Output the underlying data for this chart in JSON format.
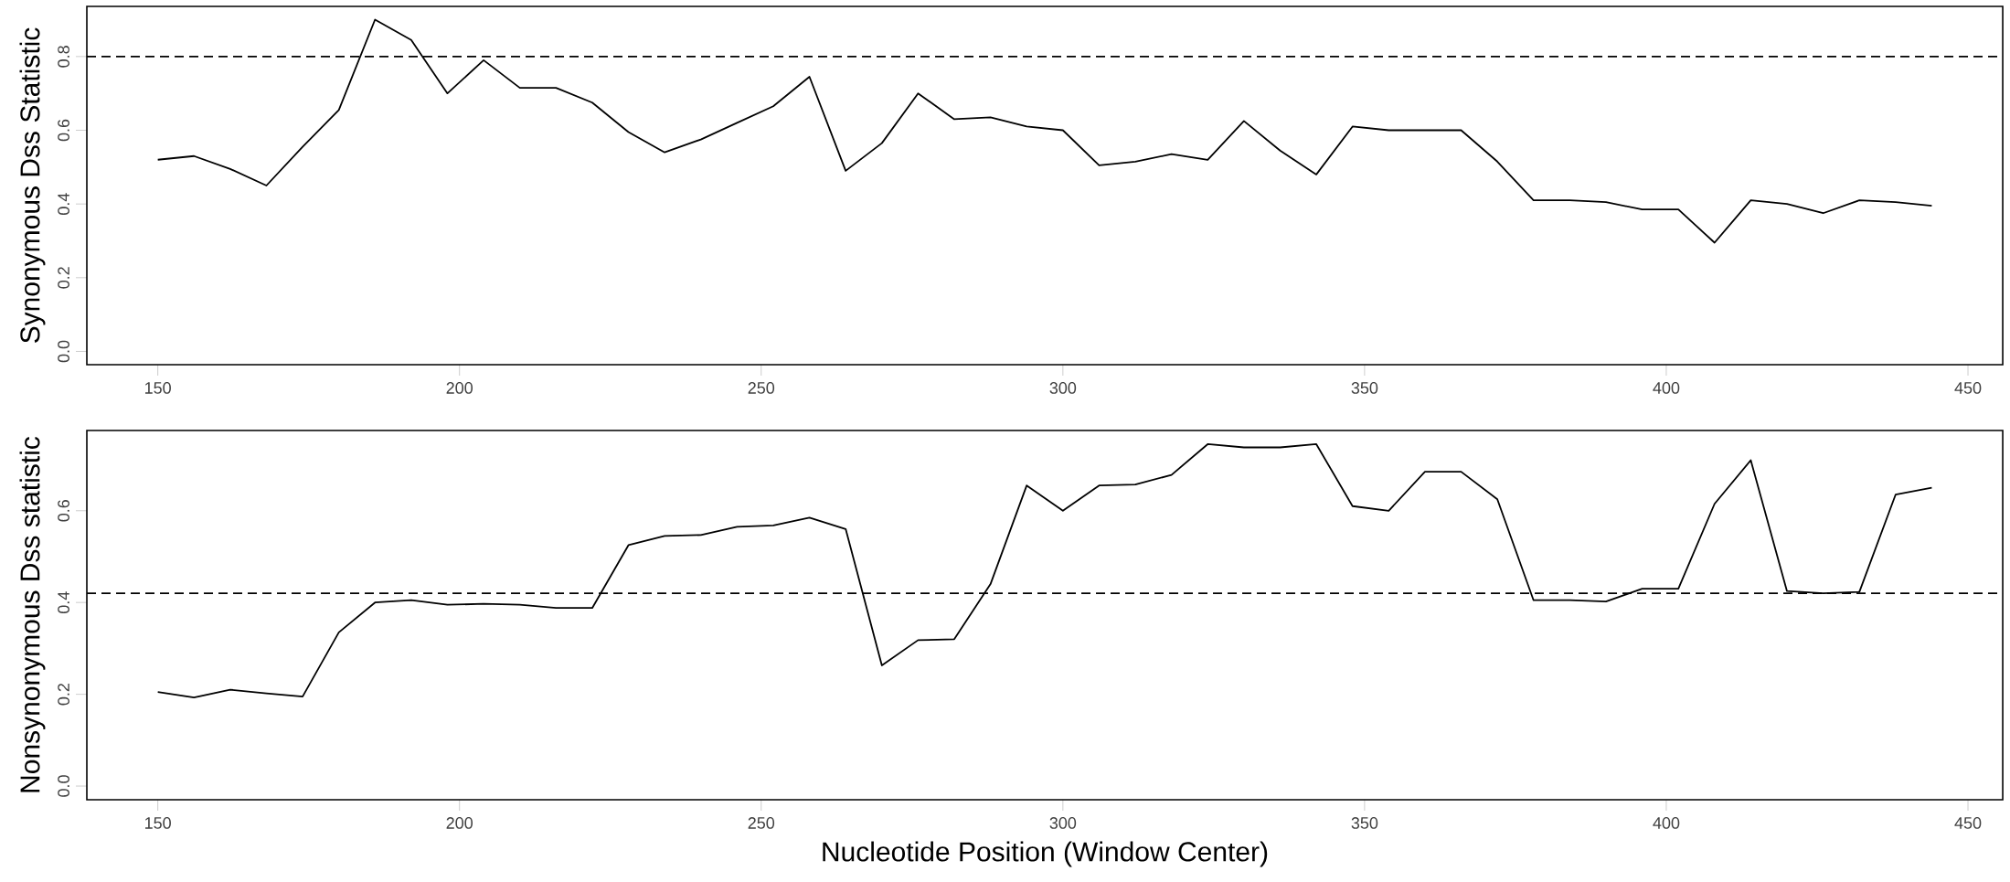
{
  "chart_data": [
    {
      "type": "line",
      "ylabel": "Synonymous Dss Statistic",
      "color": "#000000",
      "x": [
        150,
        156,
        162,
        168,
        174,
        180,
        186,
        192,
        198,
        204,
        210,
        216,
        222,
        228,
        234,
        240,
        246,
        252,
        258,
        264,
        270,
        276,
        282,
        288,
        294,
        300,
        306,
        312,
        318,
        324,
        330,
        336,
        342,
        348,
        354,
        360,
        366,
        372,
        378,
        384,
        390,
        396,
        402,
        408,
        414,
        420,
        426,
        432,
        438,
        444
      ],
      "values": [
        0.52,
        0.53,
        0.495,
        0.45,
        0.555,
        0.655,
        0.9,
        0.845,
        0.7,
        0.79,
        0.715,
        0.715,
        0.675,
        0.595,
        0.54,
        0.575,
        0.62,
        0.665,
        0.745,
        0.49,
        0.565,
        0.7,
        0.63,
        0.635,
        0.61,
        0.6,
        0.505,
        0.515,
        0.535,
        0.52,
        0.625,
        0.545,
        0.48,
        0.61,
        0.6,
        0.6,
        0.6,
        0.515,
        0.41,
        0.41,
        0.405,
        0.385,
        0.385,
        0.295,
        0.41,
        0.4,
        0.375,
        0.41,
        0.405,
        0.395
      ],
      "xlim": [
        138.24,
        455.76
      ],
      "ylim": [
        -0.036,
        0.936
      ],
      "xticks": [
        150,
        200,
        250,
        300,
        350,
        400,
        450
      ],
      "yticks": [
        {
          "value": 0,
          "label": "0.0"
        },
        0.2,
        0.4,
        0.6,
        0.8
      ],
      "ref_lines": [
        {
          "axis": "y",
          "value": 0.8,
          "line_style": "dashed"
        }
      ]
    },
    {
      "type": "line",
      "ylabel": "Nonsynonymous Dss statistic",
      "xlabel": "Nucleotide Position (Window Center)",
      "color": "#000000",
      "x": [
        150,
        156,
        162,
        168,
        174,
        180,
        186,
        192,
        198,
        204,
        210,
        216,
        222,
        228,
        234,
        240,
        246,
        252,
        258,
        264,
        270,
        276,
        282,
        288,
        294,
        300,
        306,
        312,
        318,
        324,
        330,
        336,
        342,
        348,
        354,
        360,
        366,
        372,
        378,
        384,
        390,
        396,
        402,
        408,
        414,
        420,
        426,
        432,
        438,
        444
      ],
      "values": [
        0.205,
        0.193,
        0.21,
        0.202,
        0.195,
        0.335,
        0.4,
        0.405,
        0.395,
        0.397,
        0.395,
        0.388,
        0.388,
        0.525,
        0.545,
        0.547,
        0.565,
        0.568,
        0.585,
        0.56,
        0.263,
        0.318,
        0.32,
        0.44,
        0.655,
        0.6,
        0.655,
        0.657,
        0.678,
        0.745,
        0.738,
        0.738,
        0.745,
        0.61,
        0.6,
        0.685,
        0.685,
        0.625,
        0.405,
        0.405,
        0.402,
        0.43,
        0.43,
        0.615,
        0.71,
        0.425,
        0.42,
        0.423,
        0.635,
        0.65
      ],
      "xlim": [
        138.24,
        455.76
      ],
      "ylim": [
        -0.0298,
        0.7748
      ],
      "xticks": [
        150,
        200,
        250,
        300,
        350,
        400,
        450
      ],
      "yticks": [
        {
          "value": 0,
          "label": "0.0"
        },
        0.2,
        0.4,
        0.6
      ],
      "ref_lines": [
        {
          "axis": "y",
          "value": 0.42,
          "line_style": "dashed"
        }
      ]
    }
  ]
}
